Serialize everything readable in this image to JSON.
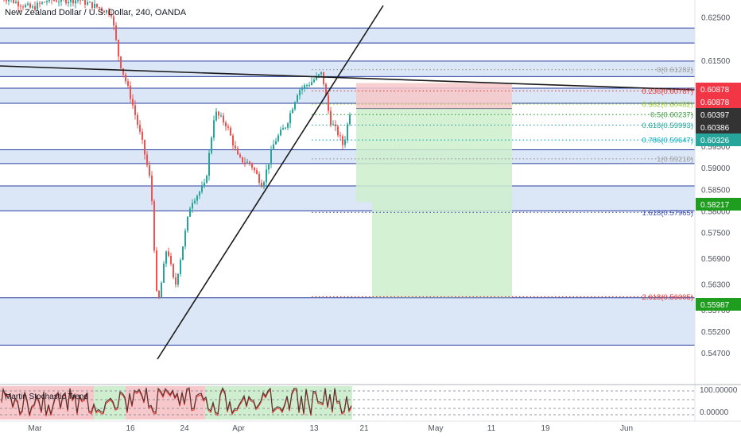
{
  "header": {
    "symbol_title": "New Zealand Dollar / U.S. Dollar, 240, OANDA"
  },
  "indicator": {
    "name": "Martin Stochastic Trend",
    "axis_labels": [
      "100.00000",
      "0.00000"
    ]
  },
  "chart_data": {
    "type": "candlestick",
    "symbol": "NZDUSD",
    "timeframe": "240",
    "source": "OANDA",
    "ylim": [
      0.5437,
      0.629
    ],
    "y_ticks": [
      "0.62500",
      "0.61500",
      "0.60500",
      "0.59500",
      "0.59000",
      "0.58500",
      "0.58000",
      "0.57500",
      "0.56900",
      "0.56300",
      "0.55700",
      "0.55200",
      "0.54700"
    ],
    "x_ticks": [
      "Mar",
      "16",
      "24",
      "Apr",
      "13",
      "21",
      "May",
      "11",
      "19",
      "Jun"
    ],
    "price_badges": [
      {
        "text": "0.60878",
        "color": "#f23645"
      },
      {
        "text": "0.60878",
        "color": "#f23645"
      },
      {
        "text": "0.60397",
        "color": "#333333"
      },
      {
        "text": "0.60386",
        "color": "#333333"
      },
      {
        "text": "0.60326",
        "color": "#26a69a"
      },
      {
        "text": "0.58217",
        "color": "#1e9d1e"
      },
      {
        "text": "0.55987",
        "color": "#1e9d1e"
      }
    ],
    "fib_levels": [
      {
        "label": "0(0.61282)",
        "price": 0.61282,
        "color": "#9e9e9e"
      },
      {
        "label": "0.236(0.60787)",
        "price": 0.60787,
        "color": "#e53935"
      },
      {
        "label": "0.382(0.60482)",
        "price": 0.60482,
        "color": "#9ccc3c"
      },
      {
        "label": "0.5(0.60237)",
        "price": 0.60237,
        "color": "#43a047"
      },
      {
        "label": "0.618(0.59993)",
        "price": 0.59993,
        "color": "#26a69a"
      },
      {
        "label": "0.786(0.59647)",
        "price": 0.59647,
        "color": "#00acc1"
      },
      {
        "label": "1(0.59210)",
        "price": 0.5921,
        "color": "#9e9e9e"
      },
      {
        "label": "1.618(0.57965)",
        "price": 0.57965,
        "color": "#3f51b5"
      },
      {
        "label": "2.618(0.56005)",
        "price": 0.56005,
        "color": "#e53935"
      }
    ],
    "zones": [
      {
        "top": 0.6225,
        "bottom": 0.619
      },
      {
        "top": 0.6148,
        "bottom": 0.6112
      },
      {
        "top": 0.6085,
        "bottom": 0.605
      },
      {
        "top": 0.5942,
        "bottom": 0.591
      },
      {
        "top": 0.5858,
        "bottom": 0.58
      },
      {
        "top": 0.5598,
        "bottom": 0.5488
      }
    ],
    "position": {
      "entry": 0.60378,
      "stop": 0.60878,
      "target": 0.55987
    },
    "colors": {
      "up": "#26a69a",
      "down": "#ef5350",
      "zone_fill": "#dbe6f7",
      "zone_line": "#2a3f9e",
      "risk": "#f7c7c9",
      "reward": "#cdeecd"
    }
  }
}
